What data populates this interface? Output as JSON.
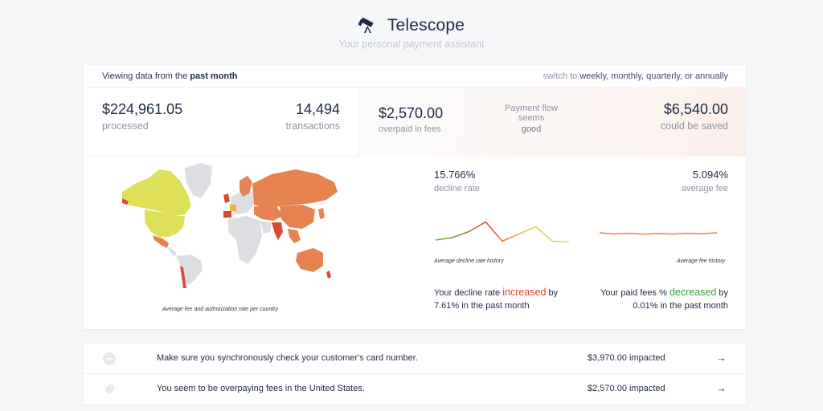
{
  "header": {
    "title": "Telescope",
    "tagline": "Your personal payment assistant",
    "logo_icon": "telescope-icon"
  },
  "topbar": {
    "prefix": "Viewing data from the ",
    "period": "past month",
    "switch_prefix": "switch to ",
    "switch_options": "weekly, monthly, quarterly, or annually"
  },
  "stats": {
    "processed_value": "$224,961.05",
    "processed_label": "processed",
    "transactions_value": "14,494",
    "transactions_label": "transactions",
    "overpaid_value": "$2,570.00",
    "overpaid_label": "overpaid in fees",
    "flow_label": "Payment flow seems",
    "flow_status": "good",
    "saved_value": "$6,540.00",
    "saved_label": "could be saved"
  },
  "map": {
    "caption": "Average fee and authorization rate per country",
    "colors": {
      "no_data": "#dcdee2",
      "low": "#dfe05a",
      "mid": "#f1b23c",
      "high": "#e68350",
      "worst": "#d94a35"
    }
  },
  "decline": {
    "value": "15.766%",
    "label": "decline rate",
    "history_caption": "Average decline rate history",
    "trend_prefix": "Your decline rate ",
    "trend_word": "increased",
    "trend_mid": " by",
    "trend_amount": "7.61% in the past month",
    "history": [
      0.2,
      0.3,
      0.55,
      0.95,
      0.15,
      0.45,
      0.75,
      0.15,
      0.12
    ]
  },
  "fee": {
    "value": "5.094%",
    "label": "average fee",
    "history_caption": "Average fee history",
    "trend_prefix": "Your paid fees % ",
    "trend_word": "decreased",
    "trend_mid": " by",
    "trend_amount": "0.01% in the past month",
    "history": [
      0.5,
      0.45,
      0.48,
      0.44,
      0.47,
      0.45,
      0.48,
      0.46,
      0.5
    ]
  },
  "recommendations": [
    {
      "icon": "minus-circle-icon",
      "text": "Make sure you synchronously check your customer's card number.",
      "amount": "$3,970.00 impacted",
      "arrow": "→"
    },
    {
      "icon": "tag-icon",
      "text": "You seem to be overpaying fees in the United States.",
      "amount": "$2,570.00 impacted",
      "arrow": "→"
    }
  ]
}
